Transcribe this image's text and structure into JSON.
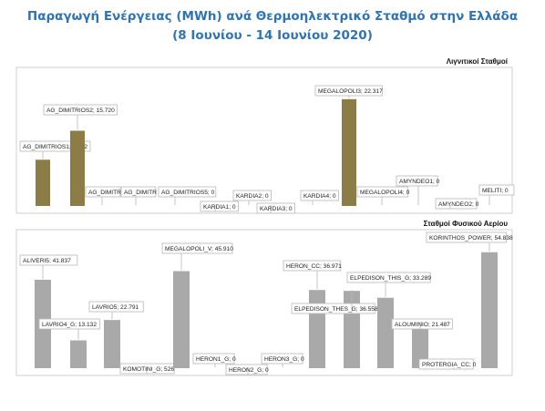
{
  "title": "Παραγωγή Ενέργειας (MWh) ανά Θερμοηλεκτρικό Σταθμό στην Ελλάδα",
  "subtitle": "(8 Ιουνίου - 14 Ιουνίου 2020)",
  "colors": {
    "lignite": "#8b7d45",
    "gas": "#a9a9a9",
    "title": "#2e74b5"
  },
  "chart_data": [
    {
      "type": "bar",
      "title": "Λιγνιτικοί Σταθμοί",
      "categories": [
        "AG_DIMITRIOS1",
        "AG_DIMITRIOS2",
        "AG_DIMITRIOS3",
        "AG_DIMITRIOS4",
        "AG_DIMITRIOS5",
        "KARDIA1",
        "KARDIA2",
        "KARDIA3",
        "KARDIA4",
        "MEGALOPOLI3",
        "MEGALOPOLI4",
        "AMYNDEO1",
        "AMYNDEO2",
        "MELITI"
      ],
      "values": [
        9.662,
        15.72,
        0,
        0,
        0,
        0,
        0,
        0,
        0,
        22.317,
        0,
        0,
        0,
        0
      ],
      "labels": [
        "AG_DIMITRIOS1; 9.662",
        "AG_DIMITRIOS2; 15.720",
        "AG_DIMITR",
        "AG_DIMITR",
        "AG_DIMITRIOS5; 0",
        "KARDIA1; 0",
        "KARDIA2; 0",
        "KARDIA3; 0",
        "KARDIA4; 0",
        "MEGALOPOLI3; 22.317",
        "MEGALOPOLI4; 0",
        "AMYNDEO1; 0",
        "AMYNDEO2; 0",
        "MELITI; 0"
      ]
    },
    {
      "type": "bar",
      "title": "Σταθμοί Φυσικού Αερίου",
      "categories": [
        "ALIVERI5",
        "LAVRIO4_G",
        "LAVRIO5",
        "KOMOTINI_G",
        "MEGALOPOLI_V",
        "HERON1_G",
        "HERON2_G",
        "HERON3_G",
        "HERON_CC",
        "ELPEDISON_THES_G",
        "ELPEDISON_THIS_G",
        "ALOUMINIO",
        "PROTERGIA_CC",
        "KORINTHOS_POWER"
      ],
      "values": [
        41.837,
        13.132,
        22.791,
        526,
        45.91,
        0,
        0,
        0,
        36.971,
        36.558,
        33.289,
        21.487,
        0,
        54.838
      ],
      "labels": [
        "ALIVERI5; 41.837",
        "LAVRIO4_G; 13.132",
        "LAVRIO5; 22.791",
        "KOMOTINI_G; 526",
        "MEGALOPOLI_V; 45.910",
        "HERON1_G; 0",
        "HERON2_G; 0",
        "HERON3_G; 0",
        "HERON_CC; 36.971",
        "ELPEDISON_THES_G; 36.558",
        "ELPEDISON_THIS_G; 33.289",
        "ALOUMINIO; 21.487",
        "PROTERGIA_CC; 0",
        "KORINTHOS_POWER; 54.838"
      ]
    }
  ]
}
